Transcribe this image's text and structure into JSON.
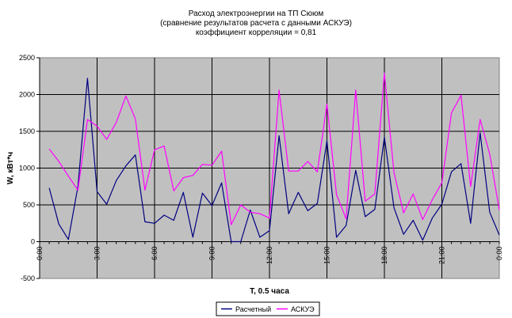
{
  "chart_data": {
    "type": "line",
    "title": "Расход электроэнергии на ТП Сююм",
    "subtitle_lines": [
      "(сравнение результатов расчета с данными АСКУЭ)",
      "коэффициент корреляции = 0,81"
    ],
    "xlabel": "T, 0.5 часа",
    "ylabel": "W, кВт*ч",
    "ylim": [
      -500,
      2500
    ],
    "yticks": [
      -500,
      0,
      500,
      1000,
      1500,
      2000,
      2500
    ],
    "xtick_labels": [
      "0:00",
      "3:00",
      "6:00",
      "9:00",
      "12:00",
      "15:00",
      "18:00",
      "21:00",
      "0:00"
    ],
    "x": [
      0.5,
      1,
      1.5,
      2,
      2.5,
      3,
      3.5,
      4,
      4.5,
      5,
      5.5,
      6,
      6.5,
      7,
      7.5,
      8,
      8.5,
      9,
      9.5,
      10,
      10.5,
      11,
      11.5,
      12,
      12.5,
      13,
      13.5,
      14,
      14.5,
      15,
      15.5,
      16,
      16.5,
      17,
      17.5,
      18,
      18.5,
      19,
      19.5,
      20,
      20.5,
      21,
      21.5,
      22,
      22.5,
      23,
      23.5,
      24
    ],
    "series": [
      {
        "name": "Расчетный",
        "color": "#000080",
        "values": [
          730,
          240,
          30,
          750,
          2220,
          680,
          510,
          830,
          1030,
          1180,
          270,
          250,
          360,
          290,
          670,
          60,
          660,
          490,
          800,
          0,
          0,
          430,
          60,
          150,
          1440,
          380,
          670,
          420,
          520,
          1370,
          60,
          220,
          970,
          340,
          440,
          1420,
          460,
          100,
          290,
          20,
          320,
          510,
          950,
          1060,
          250,
          1480,
          400,
          90
        ]
      },
      {
        "name": "АСКУЭ",
        "color": "#FF00FF",
        "values": [
          1260,
          1090,
          890,
          700,
          1660,
          1570,
          1390,
          1620,
          1980,
          1670,
          700,
          1250,
          1300,
          690,
          870,
          900,
          1050,
          1040,
          1230,
          230,
          500,
          400,
          380,
          320,
          2060,
          960,
          960,
          1090,
          950,
          1870,
          640,
          310,
          2060,
          550,
          650,
          2290,
          940,
          390,
          650,
          300,
          570,
          800,
          1750,
          1990,
          750,
          1660,
          1190,
          430
        ]
      }
    ],
    "grid": true,
    "legend_position": "bottom-center",
    "plot_background": "#C0C0C0"
  }
}
